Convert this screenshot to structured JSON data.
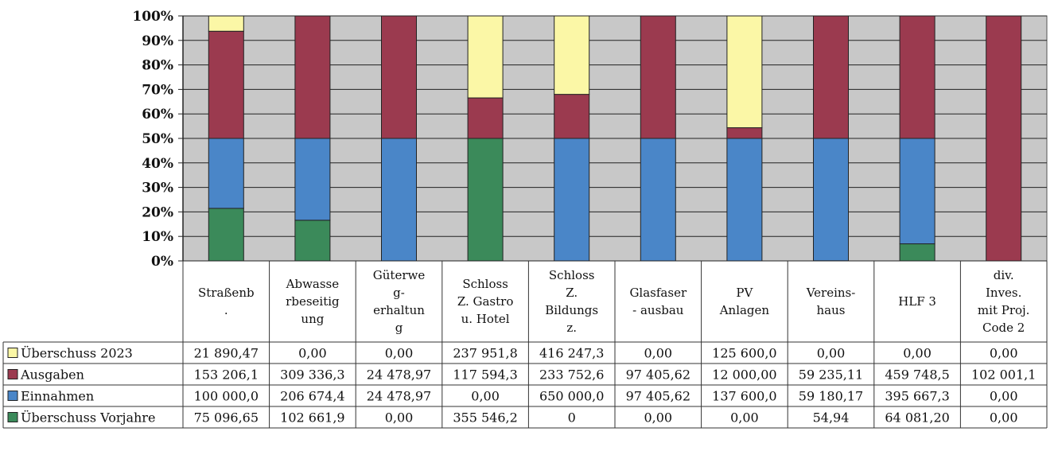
{
  "chart_data": {
    "type": "bar",
    "stacked": "percent",
    "categories": [
      [
        "Straßenb",
        "."
      ],
      [
        "Abwasse",
        "rbeseitig",
        "ung"
      ],
      [
        "Güterwe",
        "g-",
        "erhaltun",
        "g"
      ],
      [
        "Schloss",
        "Z. Gastro",
        "u. Hotel"
      ],
      [
        "Schloss",
        "Z.",
        "Bildungs",
        "z."
      ],
      [
        "Glasfaser",
        "- ausbau"
      ],
      [
        "PV",
        "Anlagen"
      ],
      [
        "Vereins-",
        "haus"
      ],
      [
        "HLF 3"
      ],
      [
        "div.",
        "Inves.",
        "mit Proj.",
        "Code 2"
      ]
    ],
    "y_ticks": [
      "100%",
      "90%",
      "80%",
      "70%",
      "60%",
      "50%",
      "40%",
      "30%",
      "20%",
      "10%",
      "0%"
    ],
    "ylim": [
      0,
      100
    ],
    "grid": true,
    "legend": "table-left",
    "series": [
      {
        "name": "Überschuss Vorjahre",
        "color": "#3b8a5a",
        "values": [
          75096.65,
          102661.9,
          0,
          355546.2,
          0,
          0,
          0,
          54.94,
          64081.2,
          0
        ],
        "labels": [
          "75 096,65",
          "102 661,9",
          "0,00",
          "355 546,2",
          "0",
          "0,00",
          "0,00",
          "54,94",
          "64 081,20",
          "0,00"
        ]
      },
      {
        "name": "Einnahmen",
        "color": "#4a86c8",
        "values": [
          100000.0,
          206674.4,
          24478.97,
          0,
          650000.0,
          97405.62,
          137600.0,
          59180.17,
          395667.3,
          0
        ],
        "labels": [
          "100 000,0",
          "206 674,4",
          "24 478,97",
          "0,00",
          "650 000,0",
          "97 405,62",
          "137 600,0",
          "59 180,17",
          "395 667,3",
          "0,00"
        ]
      },
      {
        "name": "Ausgaben",
        "color": "#9b3a4f",
        "values": [
          153206.1,
          309336.3,
          24478.97,
          117594.3,
          233752.6,
          97405.62,
          12000.0,
          59235.11,
          459748.5,
          102001.1
        ],
        "labels": [
          "153 206,1",
          "309 336,3",
          "24 478,97",
          "117 594,3",
          "233 752,6",
          "97 405,62",
          "12 000,00",
          "59 235,11",
          "459 748,5",
          "102 001,1"
        ]
      },
      {
        "name": "Überschuss 2023",
        "color": "#fbf7a6",
        "values": [
          21890.47,
          0,
          0,
          237951.8,
          416247.3,
          0,
          125600.0,
          0,
          0,
          0
        ],
        "labels": [
          "21 890,47",
          "0,00",
          "0,00",
          "237 951,8",
          "416 247,3",
          "0,00",
          "125 600,0",
          "0,00",
          "0,00",
          "0,00"
        ]
      }
    ],
    "table_row_order": [
      "Überschuss 2023",
      "Ausgaben",
      "Einnahmen",
      "Überschuss Vorjahre"
    ]
  }
}
